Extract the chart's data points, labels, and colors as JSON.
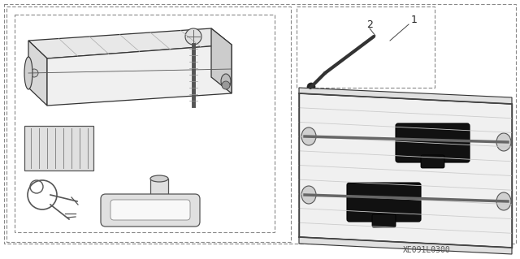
{
  "background_color": "#ffffff",
  "fig_w": 6.4,
  "fig_h": 3.19,
  "dpi": 100,
  "part_code": "XE091L0300"
}
